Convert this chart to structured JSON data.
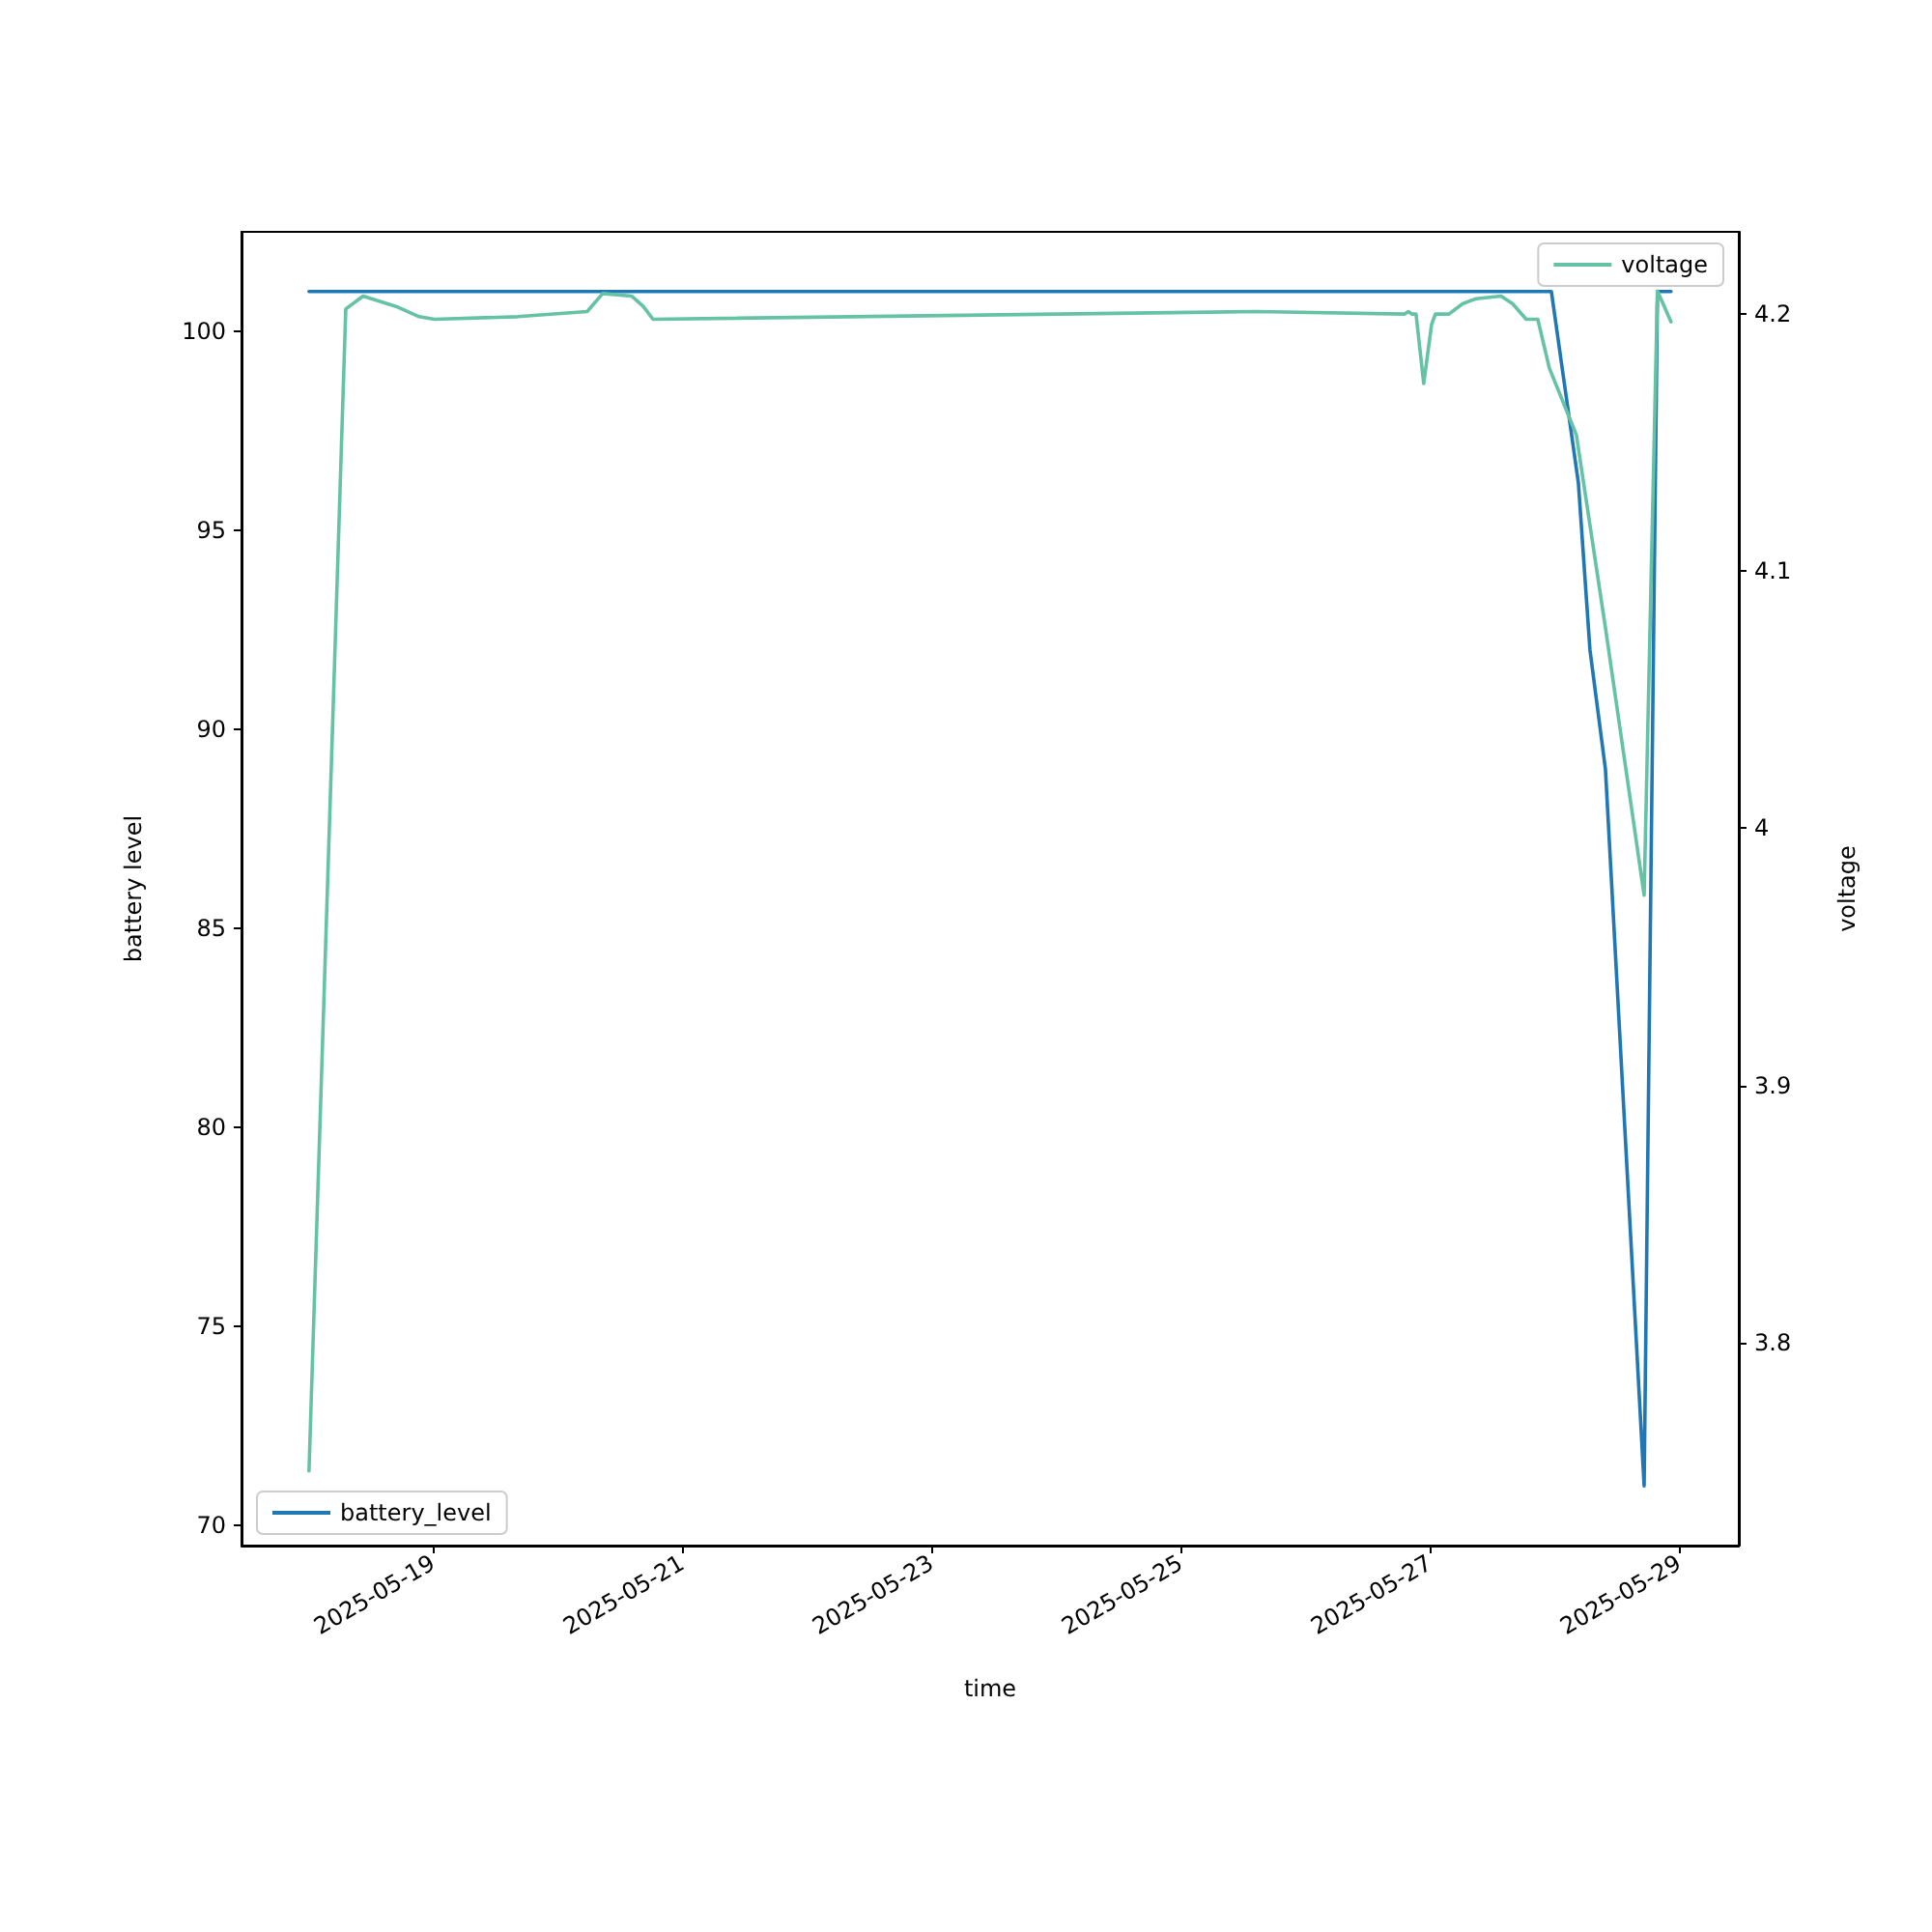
{
  "chart_data": {
    "type": "line",
    "xlabel": "time",
    "ylabel": "battery level",
    "y2label": "voltage",
    "xlim": [
      "2025-05-17T11:10",
      "2025-05-29T11:33"
    ],
    "xticks": [
      "2025-05-19",
      "2025-05-21",
      "2025-05-23",
      "2025-05-25",
      "2025-05-27",
      "2025-05-29"
    ],
    "ylim": [
      69.5,
      102.5
    ],
    "yticks": [
      70,
      75,
      80,
      85,
      90,
      95,
      100
    ],
    "y2lim": [
      3.721,
      4.232
    ],
    "y2ticks": [
      3.8,
      3.9,
      4.0,
      4.1,
      4.2
    ],
    "grid": false,
    "legend": "bottom left",
    "marker": "none",
    "line_style": "solid",
    "series": [
      {
        "name": "battery_level",
        "color": "#1f77b4",
        "x": [
          "2025-05-18T00:10",
          "2025-05-27T23:27",
          "2025-05-28T04:39",
          "2025-05-28T06:53",
          "2025-05-28T09:52",
          "2025-05-28T17:19",
          "2025-05-28T19:53",
          "2025-05-28T22:30"
        ],
        "values": [
          101,
          101,
          96.2,
          92,
          89,
          71,
          101,
          101
        ]
      },
      {
        "name": "voltage",
        "color": "#66c2a5",
        "axis": "y2",
        "x": [
          "2025-05-18T00:10",
          "2025-05-18T07:15",
          "2025-05-18T10:35",
          "2025-05-18T16:55",
          "2025-05-18T21:23",
          "2025-05-19T00:20",
          "2025-05-19T16:22",
          "2025-05-20T05:45",
          "2025-05-20T08:44",
          "2025-05-20T14:20",
          "2025-05-20T16:33",
          "2025-05-20T18:25",
          "2025-05-25T14:31",
          "2025-05-26T19:09",
          "2025-05-26T19:54",
          "2025-05-26T20:38",
          "2025-05-26T21:23",
          "2025-05-26T22:52",
          "2025-05-27T00:23",
          "2025-05-27T01:07",
          "2025-05-27T03:43",
          "2025-05-27T06:20",
          "2025-05-27T08:56",
          "2025-05-27T13:46",
          "2025-05-27T16:00",
          "2025-05-27T18:36",
          "2025-05-27T20:50",
          "2025-05-27T23:04",
          "2025-05-28T04:16",
          "2025-05-28T09:52",
          "2025-05-28T17:19",
          "2025-05-28T19:53",
          "2025-05-28T22:30"
        ],
        "values": [
          3.75,
          4.202,
          4.207,
          4.203,
          4.199,
          4.198,
          4.199,
          4.201,
          4.208,
          4.207,
          4.203,
          4.198,
          4.201,
          4.2,
          4.201,
          4.2,
          4.2,
          4.173,
          4.196,
          4.2,
          4.2,
          4.204,
          4.206,
          4.207,
          4.204,
          4.198,
          4.198,
          4.179,
          4.153,
          4.078,
          3.974,
          4.209,
          4.197
        ]
      }
    ]
  }
}
